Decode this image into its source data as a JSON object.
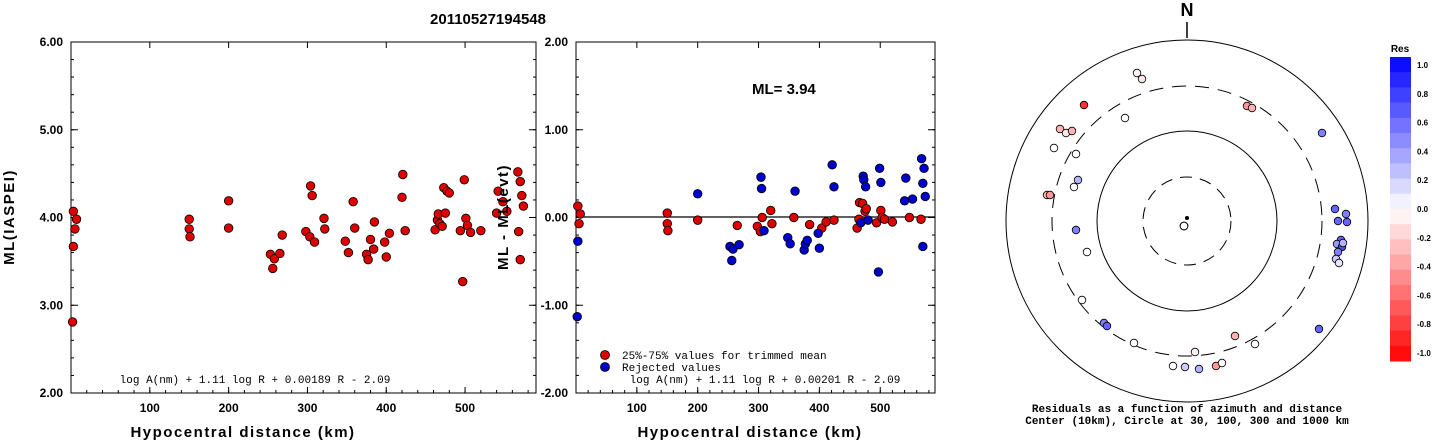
{
  "title": "20110527194548",
  "chart_data": [
    {
      "type": "scatter",
      "ylabel": "ML(IASPEI)",
      "xlabel": "Hypocentral distance (km)",
      "xlim": [
        0,
        590
      ],
      "ylim": [
        2.0,
        6.0
      ],
      "xticks": [
        "100",
        "200",
        "300",
        "400",
        "500"
      ],
      "yticks": [
        "2.00",
        "3.00",
        "4.00",
        "5.00",
        "6.00"
      ],
      "formula": "log A(nm) + 1.11 log R + 0.00189 R - 2.09",
      "points": [
        [
          3,
          4.07
        ],
        [
          7,
          3.98
        ],
        [
          5,
          3.87
        ],
        [
          3,
          3.67
        ],
        [
          2,
          2.81
        ],
        [
          150,
          3.98
        ],
        [
          150,
          3.87
        ],
        [
          151,
          3.78
        ],
        [
          200,
          4.19
        ],
        [
          200,
          3.88
        ],
        [
          253,
          3.58
        ],
        [
          256,
          3.42
        ],
        [
          258,
          3.53
        ],
        [
          265,
          3.59
        ],
        [
          268,
          3.8
        ],
        [
          298,
          3.84
        ],
        [
          303,
          3.78
        ],
        [
          304,
          4.36
        ],
        [
          306,
          4.25
        ],
        [
          309,
          3.72
        ],
        [
          321,
          3.99
        ],
        [
          322,
          3.87
        ],
        [
          348,
          3.73
        ],
        [
          352,
          3.6
        ],
        [
          358,
          4.18
        ],
        [
          360,
          3.88
        ],
        [
          375,
          3.58
        ],
        [
          377,
          3.52
        ],
        [
          380,
          3.75
        ],
        [
          384,
          3.64
        ],
        [
          385,
          3.95
        ],
        [
          398,
          3.72
        ],
        [
          400,
          3.55
        ],
        [
          404,
          3.82
        ],
        [
          420,
          4.23
        ],
        [
          421,
          4.49
        ],
        [
          424,
          3.85
        ],
        [
          462,
          3.86
        ],
        [
          465,
          3.97
        ],
        [
          466,
          4.04
        ],
        [
          468,
          3.93
        ],
        [
          471,
          3.9
        ],
        [
          473,
          4.34
        ],
        [
          475,
          4.05
        ],
        [
          477,
          4.3
        ],
        [
          480,
          4.28
        ],
        [
          494,
          3.85
        ],
        [
          497,
          3.27
        ],
        [
          499,
          4.43
        ],
        [
          501,
          3.99
        ],
        [
          503,
          3.91
        ],
        [
          507,
          3.83
        ],
        [
          520,
          3.85
        ],
        [
          540,
          4.05
        ],
        [
          542,
          4.3
        ],
        [
          548,
          4.18
        ],
        [
          553,
          4.07
        ],
        [
          567,
          4.52
        ],
        [
          570,
          4.41
        ],
        [
          568,
          3.84
        ],
        [
          570,
          3.52
        ],
        [
          572,
          4.25
        ],
        [
          574,
          4.13
        ]
      ]
    },
    {
      "type": "scatter",
      "ylabel": "ML - ML(evt)",
      "xlabel": "Hypocentral distance (km)",
      "xlim": [
        0,
        590
      ],
      "ylim": [
        -2.0,
        2.0
      ],
      "xticks": [
        "100",
        "200",
        "300",
        "400",
        "500"
      ],
      "yticks": [
        "-2.00",
        "-1.00",
        "0.00",
        "1.00",
        "2.00"
      ],
      "annotation": "ML= 3.94",
      "formula": "log A(nm) + 1.11 log R + 0.00201 R - 2.09",
      "series": [
        {
          "name": "25%-75% values for trimmed mean",
          "color": "#dd0000",
          "points": [
            [
              3,
              0.13
            ],
            [
              7,
              0.04
            ],
            [
              5,
              -0.07
            ],
            [
              150,
              0.05
            ],
            [
              150,
              -0.07
            ],
            [
              151,
              -0.15
            ],
            [
              200,
              -0.03
            ],
            [
              265,
              -0.09
            ],
            [
              298,
              -0.1
            ],
            [
              303,
              -0.16
            ],
            [
              306,
              0.0
            ],
            [
              320,
              0.08
            ],
            [
              322,
              -0.07
            ],
            [
              358,
              0.0
            ],
            [
              384,
              -0.08
            ],
            [
              404,
              -0.12
            ],
            [
              411,
              -0.05
            ],
            [
              424,
              -0.03
            ],
            [
              462,
              -0.12
            ],
            [
              465,
              -0.02
            ],
            [
              466,
              0.17
            ],
            [
              471,
              0.16
            ],
            [
              475,
              0.07
            ],
            [
              477,
              0.1
            ],
            [
              494,
              -0.06
            ],
            [
              501,
              0.08
            ],
            [
              503,
              0.0
            ],
            [
              507,
              -0.02
            ],
            [
              520,
              -0.05
            ],
            [
              548,
              0.0
            ],
            [
              567,
              -0.02
            ]
          ]
        },
        {
          "name": "Rejected values",
          "color": "#0000cc",
          "points": [
            [
              2,
              -1.13
            ],
            [
              3,
              -0.27
            ],
            [
              200,
              0.27
            ],
            [
              253,
              -0.33
            ],
            [
              256,
              -0.49
            ],
            [
              258,
              -0.36
            ],
            [
              268,
              -0.31
            ],
            [
              304,
              0.46
            ],
            [
              305,
              0.33
            ],
            [
              309,
              -0.15
            ],
            [
              348,
              -0.23
            ],
            [
              352,
              -0.3
            ],
            [
              360,
              0.3
            ],
            [
              375,
              -0.37
            ],
            [
              377,
              -0.3
            ],
            [
              380,
              -0.26
            ],
            [
              398,
              -0.18
            ],
            [
              400,
              -0.35
            ],
            [
              421,
              0.6
            ],
            [
              424,
              0.35
            ],
            [
              468,
              -0.06
            ],
            [
              472,
              0.47
            ],
            [
              473,
              0.43
            ],
            [
              476,
              0.35
            ],
            [
              480,
              -0.03
            ],
            [
              497,
              -0.62
            ],
            [
              499,
              0.56
            ],
            [
              501,
              0.4
            ],
            [
              540,
              0.19
            ],
            [
              542,
              0.45
            ],
            [
              553,
              0.21
            ],
            [
              568,
              0.67
            ],
            [
              570,
              0.39
            ],
            [
              570,
              -0.33
            ],
            [
              572,
              0.56
            ],
            [
              574,
              0.24
            ]
          ]
        }
      ]
    },
    {
      "type": "polar-scatter",
      "north_label": "N",
      "caption_line1": "Residuals as a function of azimuth and distance",
      "caption_line2": "Center (10km), Circle at 30, 100, 300 and 1000 km",
      "colorbar_title": "Res",
      "colorbar_ticks": [
        "1.0",
        "0.8",
        "0.6",
        "0.4",
        "0.2",
        "0.0",
        "-0.2",
        "-0.4",
        "-0.6",
        "-0.8",
        "-1.0"
      ],
      "points": [
        [
          1137,
          73,
          -0.05
        ],
        [
          1142,
          79,
          -0.1
        ],
        [
          1084,
          105,
          -0.8
        ],
        [
          1125,
          118,
          0.0
        ],
        [
          1247,
          106,
          -0.4
        ],
        [
          1252,
          108,
          -0.3
        ],
        [
          1322,
          133,
          0.5
        ],
        [
          1060,
          129,
          -0.3
        ],
        [
          1066,
          133,
          -0.1
        ],
        [
          1072,
          131,
          -0.3
        ],
        [
          1054,
          148,
          0.0
        ],
        [
          1076,
          154,
          0.0
        ],
        [
          1078,
          180,
          0.3
        ],
        [
          1074,
          187,
          0.0
        ],
        [
          1047,
          195,
          -0.3
        ],
        [
          1050,
          195,
          -0.4
        ],
        [
          1335,
          209,
          0.6
        ],
        [
          1346,
          214,
          0.5
        ],
        [
          1338,
          221,
          0.6
        ],
        [
          1347,
          222,
          0.6
        ],
        [
          1341,
          240,
          0.6
        ],
        [
          1337,
          244,
          0.4
        ],
        [
          1342,
          247,
          0.7
        ],
        [
          1338,
          252,
          0.5
        ],
        [
          1343,
          243,
          0.3
        ],
        [
          1336,
          259,
          0.2
        ],
        [
          1339,
          263,
          0.1
        ],
        [
          1076,
          230,
          0.5
        ],
        [
          1087,
          252,
          0.0
        ],
        [
          1184,
          226,
          0.0
        ],
        [
          1082,
          300,
          0.0
        ],
        [
          1104,
          323,
          0.5
        ],
        [
          1107,
          326,
          0.6
        ],
        [
          1134,
          343,
          0.0
        ],
        [
          1319,
          329,
          0.6
        ],
        [
          1235,
          336,
          -0.3
        ],
        [
          1195,
          352,
          -0.05
        ],
        [
          1255,
          344,
          0.0
        ],
        [
          1173,
          366,
          0.0
        ],
        [
          1185,
          367,
          0.2
        ],
        [
          1199,
          369,
          0.3
        ],
        [
          1216,
          366,
          -0.4
        ],
        [
          1222,
          363,
          0.0
        ]
      ]
    }
  ],
  "legend": [
    "25%-75% values for trimmed mean",
    "Rejected values"
  ]
}
